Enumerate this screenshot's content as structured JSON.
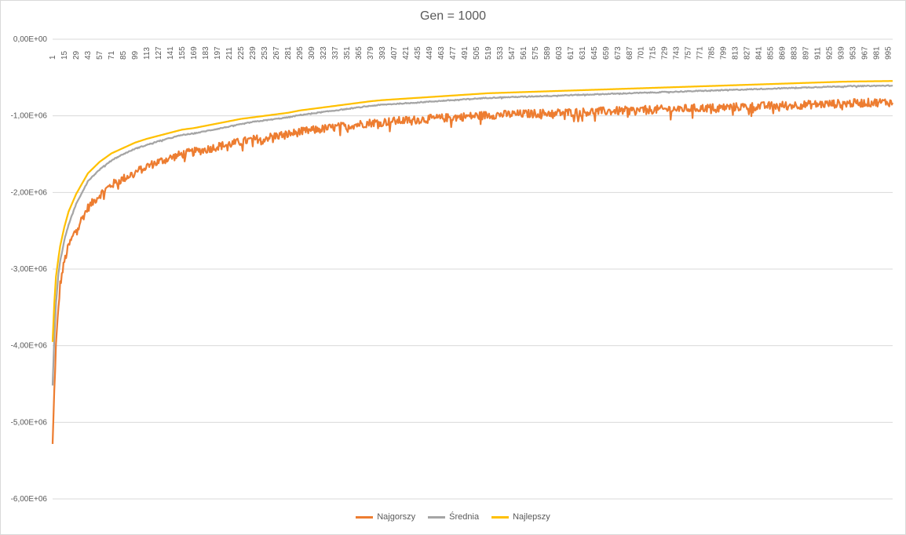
{
  "chart_data": {
    "type": "line",
    "title": "Gen = 1000",
    "xlabel": "",
    "ylabel": "",
    "x_range": [
      1,
      1000
    ],
    "ylim": [
      -6000000,
      0
    ],
    "y_tick_labels": [
      "0,00E+00",
      "-1,00E+06",
      "-2,00E+06",
      "-3,00E+06",
      "-4,00E+06",
      "-5,00E+06",
      "-6,00E+06"
    ],
    "y_tick_values": [
      0,
      -1000000,
      -2000000,
      -3000000,
      -4000000,
      -5000000,
      -6000000
    ],
    "x_tick_labels": [
      "1",
      "15",
      "29",
      "43",
      "57",
      "71",
      "85",
      "99",
      "113",
      "127",
      "141",
      "155",
      "169",
      "183",
      "197",
      "211",
      "225",
      "239",
      "253",
      "267",
      "281",
      "295",
      "309",
      "323",
      "337",
      "351",
      "365",
      "379",
      "393",
      "407",
      "421",
      "435",
      "449",
      "463",
      "477",
      "491",
      "505",
      "519",
      "533",
      "547",
      "561",
      "575",
      "589",
      "603",
      "617",
      "631",
      "645",
      "659",
      "673",
      "687",
      "701",
      "715",
      "729",
      "743",
      "757",
      "771",
      "785",
      "799",
      "813",
      "827",
      "841",
      "855",
      "869",
      "883",
      "897",
      "911",
      "925",
      "939",
      "953",
      "967",
      "981",
      "995"
    ],
    "grid": "horizontal",
    "legend_position": "bottom",
    "series": [
      {
        "name": "Najgorszy",
        "color": "#ED7D31",
        "x": [
          1,
          3,
          5,
          8,
          10,
          15,
          20,
          29,
          43,
          57,
          71,
          85,
          99,
          113,
          127,
          141,
          155,
          169,
          183,
          197,
          211,
          225,
          239,
          253,
          267,
          281,
          295,
          309,
          323,
          337,
          351,
          365,
          379,
          393,
          407,
          421,
          435,
          449,
          463,
          477,
          491,
          505,
          519,
          533,
          547,
          561,
          575,
          589,
          603,
          617,
          631,
          645,
          659,
          673,
          687,
          701,
          715,
          729,
          743,
          757,
          771,
          785,
          799,
          813,
          827,
          841,
          855,
          869,
          883,
          897,
          911,
          925,
          939,
          953,
          967,
          981,
          995,
          1000
        ],
        "values": [
          -5300000,
          -4600000,
          -4000000,
          -3500000,
          -3200000,
          -2900000,
          -2700000,
          -2480000,
          -2200000,
          -2030000,
          -1900000,
          -1820000,
          -1740000,
          -1660000,
          -1600000,
          -1550000,
          -1500000,
          -1470000,
          -1440000,
          -1400000,
          -1370000,
          -1340000,
          -1310000,
          -1290000,
          -1260000,
          -1240000,
          -1210000,
          -1190000,
          -1170000,
          -1150000,
          -1130000,
          -1110000,
          -1090000,
          -1080000,
          -1070000,
          -1060000,
          -1050000,
          -1040000,
          -1030000,
          -1020000,
          -1010000,
          -1000000,
          -990000,
          -985000,
          -980000,
          -975000,
          -970000,
          -965000,
          -960000,
          -955000,
          -950000,
          -945000,
          -940000,
          -935000,
          -930000,
          -925000,
          -920000,
          -915000,
          -910000,
          -905000,
          -900000,
          -895000,
          -890000,
          -885000,
          -880000,
          -875000,
          -870000,
          -865000,
          -860000,
          -855000,
          -850000,
          -845000,
          -840000,
          -835000,
          -830000,
          -825000,
          -820000,
          -835000
        ],
        "noise": 55000
      },
      {
        "name": "Średnia",
        "color": "#A5A5A5",
        "x": [
          1,
          3,
          5,
          8,
          10,
          15,
          20,
          29,
          43,
          57,
          71,
          85,
          99,
          113,
          127,
          141,
          155,
          169,
          183,
          197,
          211,
          225,
          239,
          253,
          267,
          281,
          295,
          309,
          323,
          337,
          351,
          365,
          379,
          393,
          407,
          421,
          435,
          449,
          463,
          477,
          491,
          505,
          519,
          533,
          547,
          561,
          575,
          589,
          603,
          617,
          631,
          645,
          659,
          673,
          687,
          701,
          715,
          729,
          743,
          757,
          771,
          785,
          799,
          813,
          827,
          841,
          855,
          869,
          883,
          897,
          911,
          925,
          939,
          953,
          967,
          981,
          995,
          1000
        ],
        "values": [
          -4520000,
          -3900000,
          -3450000,
          -3050000,
          -2900000,
          -2620000,
          -2420000,
          -2150000,
          -1850000,
          -1700000,
          -1580000,
          -1500000,
          -1430000,
          -1380000,
          -1330000,
          -1290000,
          -1250000,
          -1230000,
          -1200000,
          -1170000,
          -1140000,
          -1110000,
          -1080000,
          -1060000,
          -1040000,
          -1020000,
          -990000,
          -970000,
          -950000,
          -930000,
          -910000,
          -890000,
          -870000,
          -855000,
          -845000,
          -835000,
          -825000,
          -815000,
          -805000,
          -795000,
          -785000,
          -775000,
          -765000,
          -760000,
          -755000,
          -750000,
          -745000,
          -740000,
          -735000,
          -730000,
          -725000,
          -720000,
          -715000,
          -710000,
          -705000,
          -700000,
          -695000,
          -690000,
          -685000,
          -680000,
          -675000,
          -670000,
          -665000,
          -660000,
          -655000,
          -650000,
          -645000,
          -640000,
          -635000,
          -630000,
          -625000,
          -620000,
          -615000,
          -612000,
          -610000,
          -608000,
          -606000,
          -605000
        ],
        "noise": 6000
      },
      {
        "name": "Najlepszy",
        "color": "#FFC000",
        "x": [
          1,
          3,
          5,
          8,
          10,
          15,
          20,
          29,
          43,
          57,
          71,
          85,
          99,
          113,
          127,
          141,
          155,
          169,
          183,
          197,
          211,
          225,
          239,
          253,
          267,
          281,
          295,
          309,
          323,
          337,
          351,
          365,
          379,
          393,
          407,
          421,
          435,
          449,
          463,
          477,
          491,
          505,
          519,
          533,
          547,
          561,
          575,
          589,
          603,
          617,
          631,
          645,
          659,
          673,
          687,
          701,
          715,
          729,
          743,
          757,
          771,
          785,
          799,
          813,
          827,
          841,
          855,
          869,
          883,
          897,
          911,
          925,
          939,
          953,
          967,
          981,
          995,
          1000
        ],
        "values": [
          -3950000,
          -3450000,
          -3100000,
          -2850000,
          -2700000,
          -2450000,
          -2250000,
          -2020000,
          -1750000,
          -1600000,
          -1490000,
          -1420000,
          -1350000,
          -1300000,
          -1260000,
          -1220000,
          -1180000,
          -1160000,
          -1130000,
          -1100000,
          -1070000,
          -1040000,
          -1020000,
          -1000000,
          -980000,
          -960000,
          -930000,
          -910000,
          -890000,
          -870000,
          -850000,
          -830000,
          -810000,
          -795000,
          -785000,
          -775000,
          -765000,
          -755000,
          -745000,
          -735000,
          -725000,
          -715000,
          -705000,
          -700000,
          -695000,
          -690000,
          -685000,
          -680000,
          -675000,
          -670000,
          -665000,
          -660000,
          -655000,
          -650000,
          -645000,
          -640000,
          -635000,
          -630000,
          -625000,
          -620000,
          -615000,
          -610000,
          -605000,
          -600000,
          -595000,
          -590000,
          -585000,
          -580000,
          -575000,
          -570000,
          -565000,
          -560000,
          -555000,
          -552000,
          -550000,
          -548000,
          -546000,
          -545000
        ],
        "noise": 0
      }
    ]
  }
}
